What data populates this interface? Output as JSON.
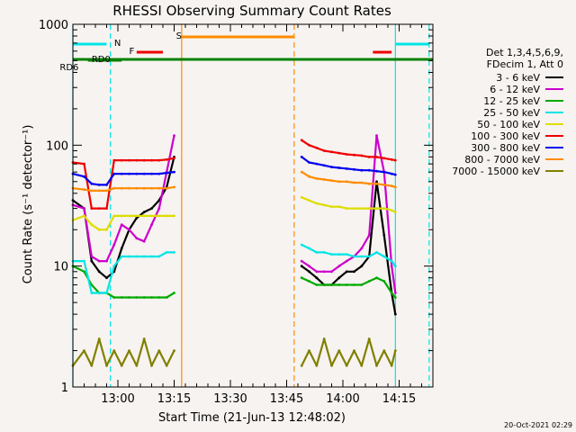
{
  "chart_data": {
    "type": "line",
    "title": "RHESSI Observing Summary Count Rates",
    "xlabel": "Start Time (21-Jun-13 12:48:02)",
    "ylabel": "Count Rate (s⁻¹ detector⁻¹)",
    "y_scale": "log",
    "ylim": [
      1,
      1000
    ],
    "xlim_minutes": [
      0,
      96
    ],
    "x_ticks": [
      {
        "label": "13:00",
        "minute": 12
      },
      {
        "label": "13:15",
        "minute": 27
      },
      {
        "label": "13:30",
        "minute": 42
      },
      {
        "label": "13:45",
        "minute": 57
      },
      {
        "label": "14:00",
        "minute": 72
      },
      {
        "label": "14:15",
        "minute": 87
      }
    ],
    "y_ticks": [
      {
        "label": "1",
        "value": 1
      },
      {
        "label": "10",
        "value": 10
      },
      {
        "label": "100",
        "value": 100
      },
      {
        "label": "1000",
        "value": 1000
      }
    ],
    "legend_header": [
      "Det 1,3,4,5,6,9,",
      "FDecim 1, Att 0"
    ],
    "legend_placement": "right",
    "timestamp": "20-Oct-2021 02:29",
    "flag_labels": {
      "N": "N",
      "F": "F",
      "S": "S",
      "RD0": "RD0",
      "RD6": "RD6"
    },
    "series": [
      {
        "name": "3 - 6 keV",
        "color": "#000000",
        "segments": [
          {
            "x": [
              0,
              3,
              5,
              7,
              9,
              11,
              13,
              15,
              17,
              19,
              21,
              23,
              25,
              27
            ],
            "y": [
              35,
              30,
              11,
              9,
              8,
              9,
              14,
              20,
              25,
              28,
              30,
              35,
              45,
              80
            ]
          },
          {
            "x": [
              61,
              63,
              65,
              67,
              69,
              71,
              73,
              75,
              77,
              79,
              81,
              83,
              85,
              86
            ],
            "y": [
              10,
              9,
              8,
              7,
              7,
              8,
              9,
              9,
              10,
              12,
              50,
              18,
              6,
              4
            ]
          }
        ]
      },
      {
        "name": "6 - 12 keV",
        "color": "#cc00cc",
        "segments": [
          {
            "x": [
              0,
              3,
              5,
              7,
              9,
              11,
              13,
              15,
              17,
              19,
              21,
              23,
              25,
              27
            ],
            "y": [
              32,
              30,
              12,
              11,
              11,
              15,
              22,
              20,
              17,
              16,
              22,
              30,
              60,
              120
            ]
          },
          {
            "x": [
              61,
              63,
              65,
              67,
              69,
              71,
              73,
              75,
              77,
              79,
              81,
              83,
              85,
              86
            ],
            "y": [
              11,
              10,
              9,
              9,
              9,
              10,
              11,
              12,
              14,
              18,
              120,
              60,
              10,
              6
            ]
          }
        ]
      },
      {
        "name": "12 - 25 keV",
        "color": "#00aa00",
        "segments": [
          {
            "x": [
              0,
              3,
              5,
              7,
              9,
              11,
              13,
              15,
              17,
              19,
              21,
              23,
              25,
              27
            ],
            "y": [
              10,
              9,
              7,
              6,
              6,
              5.5,
              5.5,
              5.5,
              5.5,
              5.5,
              5.5,
              5.5,
              5.5,
              6
            ]
          },
          {
            "x": [
              61,
              63,
              65,
              67,
              69,
              71,
              73,
              75,
              77,
              79,
              81,
              83,
              85,
              86
            ],
            "y": [
              8,
              7.5,
              7,
              7,
              7,
              7,
              7,
              7,
              7,
              7.5,
              8,
              7.5,
              6,
              5.5
            ]
          }
        ]
      },
      {
        "name": "25 - 50 keV",
        "color": "#00e5e5",
        "segments": [
          {
            "x": [
              0,
              3,
              5,
              7,
              9,
              11,
              13,
              15,
              17,
              19,
              21,
              23,
              25,
              27
            ],
            "y": [
              11,
              11,
              6,
              6,
              6,
              10,
              12,
              12,
              12,
              12,
              12,
              12,
              13,
              13
            ]
          },
          {
            "x": [
              61,
              63,
              65,
              67,
              69,
              71,
              73,
              75,
              77,
              79,
              81,
              83,
              85,
              86
            ],
            "y": [
              15,
              14,
              13,
              13,
              12.5,
              12.5,
              12.5,
              12,
              12,
              12,
              13,
              12,
              11,
              10
            ]
          }
        ]
      },
      {
        "name": "50 - 100 keV",
        "color": "#dddd00",
        "segments": [
          {
            "x": [
              0,
              3,
              5,
              7,
              9,
              11,
              13,
              15,
              17,
              19,
              21,
              23,
              25,
              27
            ],
            "y": [
              24,
              26,
              22,
              20,
              20,
              26,
              26,
              26,
              26,
              26,
              26,
              26,
              26,
              26
            ]
          },
          {
            "x": [
              61,
              63,
              65,
              67,
              69,
              71,
              73,
              75,
              77,
              79,
              81,
              83,
              85,
              86
            ],
            "y": [
              37,
              35,
              33,
              32,
              31,
              31,
              30,
              30,
              30,
              30,
              30,
              30,
              29,
              28
            ]
          }
        ]
      },
      {
        "name": "100 - 300 keV",
        "color": "#ee0000",
        "segments": [
          {
            "x": [
              0,
              3,
              5,
              7,
              9,
              11,
              13,
              15,
              17,
              19,
              21,
              23,
              25,
              27
            ],
            "y": [
              72,
              70,
              30,
              30,
              30,
              75,
              75,
              75,
              75,
              75,
              75,
              75,
              76,
              78
            ]
          },
          {
            "x": [
              61,
              63,
              65,
              67,
              69,
              71,
              73,
              75,
              77,
              79,
              81,
              83,
              85,
              86
            ],
            "y": [
              110,
              100,
              95,
              90,
              88,
              86,
              84,
              83,
              82,
              80,
              80,
              78,
              76,
              75
            ]
          }
        ]
      },
      {
        "name": "300 - 800 keV",
        "color": "#0000ee",
        "segments": [
          {
            "x": [
              0,
              3,
              5,
              7,
              9,
              11,
              13,
              15,
              17,
              19,
              21,
              23,
              25,
              27
            ],
            "y": [
              58,
              55,
              48,
              47,
              47,
              58,
              58,
              58,
              58,
              58,
              58,
              58,
              59,
              60
            ]
          },
          {
            "x": [
              61,
              63,
              65,
              67,
              69,
              71,
              73,
              75,
              77,
              79,
              81,
              83,
              85,
              86
            ],
            "y": [
              80,
              72,
              70,
              68,
              66,
              65,
              64,
              63,
              62,
              62,
              61,
              60,
              58,
              57
            ]
          }
        ]
      },
      {
        "name": "800 - 7000 keV",
        "color": "#ff8c00",
        "segments": [
          {
            "x": [
              0,
              3,
              5,
              7,
              9,
              11,
              13,
              15,
              17,
              19,
              21,
              23,
              25,
              27
            ],
            "y": [
              44,
              43,
              42,
              42,
              42,
              44,
              44,
              44,
              44,
              44,
              44,
              44,
              44,
              45
            ]
          },
          {
            "x": [
              61,
              63,
              65,
              67,
              69,
              71,
              73,
              75,
              77,
              79,
              81,
              83,
              85,
              86
            ],
            "y": [
              60,
              55,
              53,
              52,
              51,
              50,
              50,
              49,
              49,
              48,
              48,
              47,
              46,
              45
            ]
          }
        ]
      },
      {
        "name": "7000 - 15000 keV",
        "color": "#808000",
        "segments": [
          {
            "x": [
              0,
              3,
              5,
              7,
              9,
              11,
              13,
              15,
              17,
              19,
              21,
              23,
              25,
              27
            ],
            "y": [
              1.5,
              2,
              1.5,
              2.5,
              1.5,
              2,
              1.5,
              2,
              1.5,
              2.5,
              1.5,
              2,
              1.5,
              2
            ]
          },
          {
            "x": [
              61,
              63,
              65,
              67,
              69,
              71,
              73,
              75,
              77,
              79,
              81,
              83,
              85,
              86
            ],
            "y": [
              1.5,
              2,
              1.5,
              2.5,
              1.5,
              2,
              1.5,
              2,
              1.5,
              2.5,
              1.5,
              2,
              1.5,
              2
            ]
          }
        ]
      }
    ],
    "flags": [
      {
        "label": "N",
        "color": "#00e5e5",
        "level": "upper",
        "start": 0,
        "end": 9
      },
      {
        "label": "N",
        "color": "#00e5e5",
        "level": "upper",
        "start": 86,
        "end": 95
      },
      {
        "label": "F",
        "color": "#ee0000",
        "level": "middle",
        "start": 17,
        "end": 24
      },
      {
        "label": "F",
        "color": "#ee0000",
        "level": "middle",
        "start": 80,
        "end": 85
      },
      {
        "label": "S",
        "color": "#ff8c00",
        "level": "top",
        "start": 29,
        "end": 59
      },
      {
        "label": "RD0",
        "color": "#008000",
        "level": "rd0",
        "start": 4,
        "end": 13
      },
      {
        "label": "RD6",
        "color": "#008000",
        "level": "rd6",
        "start": 0,
        "end": 96
      }
    ],
    "vertical_lines": [
      {
        "minute": 0,
        "color": "#00e5e5",
        "style": "solid"
      },
      {
        "minute": 10,
        "color": "#00e5e5",
        "style": "dashed"
      },
      {
        "minute": 29,
        "color": "#ff8c00",
        "style": "solid"
      },
      {
        "minute": 59,
        "color": "#ff8c00",
        "style": "dashed"
      },
      {
        "minute": 86,
        "color": "#00e5e5",
        "style": "solid"
      },
      {
        "minute": 95,
        "color": "#00e5e5",
        "style": "dashed"
      }
    ]
  }
}
